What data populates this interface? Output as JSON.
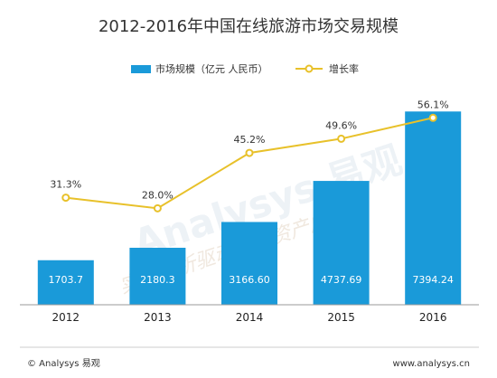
{
  "chart_data": {
    "type": "bar",
    "title": "2012-2016年中国在线旅游市场交易规模",
    "categories": [
      "2012",
      "2013",
      "2014",
      "2015",
      "2016"
    ],
    "series": [
      {
        "name": "市场规模（亿元 人民币）",
        "type": "bar",
        "color": "#1a9ad9",
        "values": [
          1703.7,
          2180.3,
          3166.6,
          4737.69,
          7394.24
        ],
        "labels": [
          "1703.7",
          "2180.3",
          "3166.60",
          "4737.69",
          "7394.24"
        ]
      },
      {
        "name": "增长率",
        "type": "line",
        "color": "#e8c12a",
        "values": [
          31.3,
          28.0,
          45.2,
          49.6,
          56.1
        ],
        "labels": [
          "31.3%",
          "28.0%",
          "45.2%",
          "49.6%",
          "56.1%"
        ]
      }
    ],
    "legend": {
      "position": "top"
    },
    "ylim": [
      0,
      8200
    ],
    "y2lim": [
      0,
      70
    ],
    "grid": false
  },
  "watermark": {
    "text": "Analysys 易观",
    "slogan": "实时分析驱动用户资产成长"
  },
  "footer": {
    "left": "© Analysys 易观",
    "right": "www.analysys.cn"
  }
}
